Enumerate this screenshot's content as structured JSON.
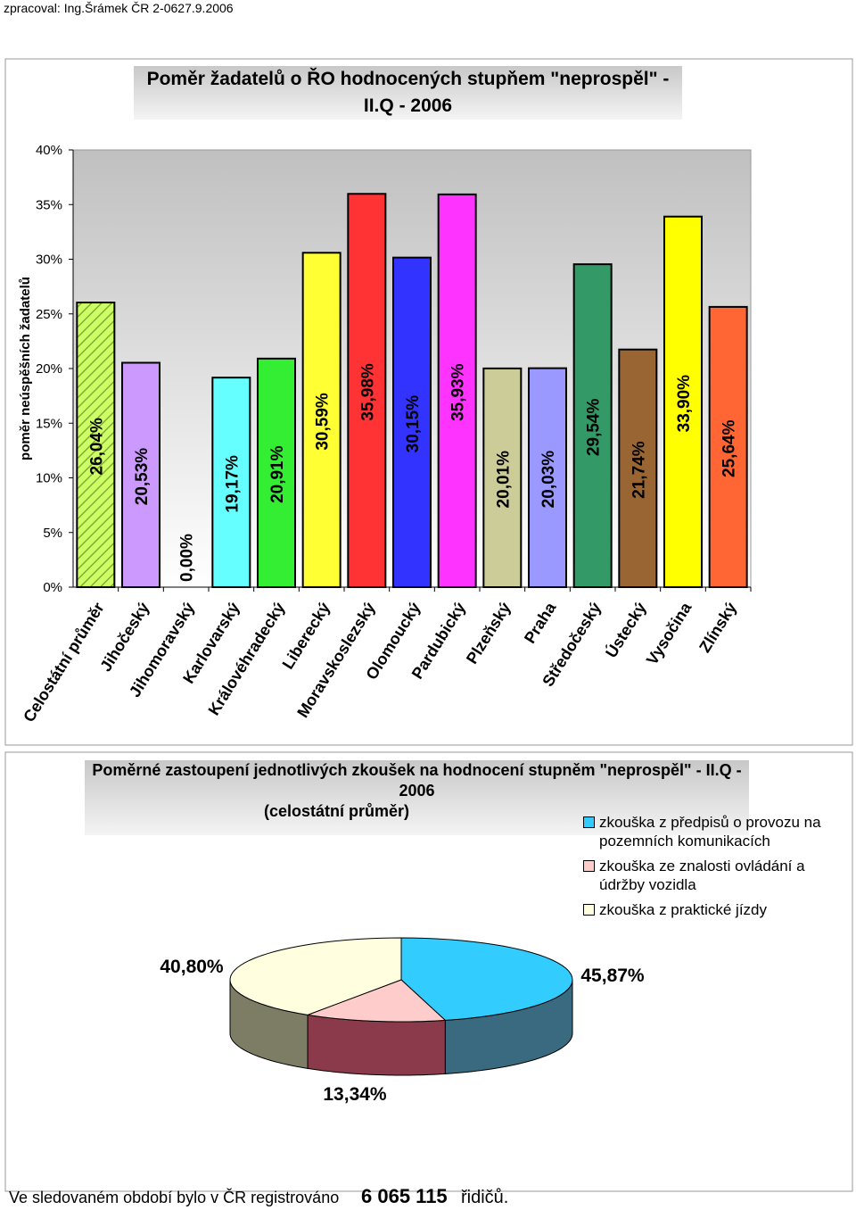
{
  "header": "zpracoval: Ing.Šrámek ČR 2-0627.9.2006",
  "chart_data": [
    {
      "type": "bar",
      "title": "Poměr žadatelů o ŘO hodnocených stupňem \"neprospěl\" - II.Q - 2006",
      "y_label": "poměr neúspěšních žadatelů",
      "categories": [
        "Celostátní průměr",
        "Jihočeský",
        "Jihomoravský",
        "Karlovarský",
        "Královéhradecký",
        "Liberecký",
        "Moravskoslezský",
        "Olomoucký",
        "Pardubický",
        "Plzeňský",
        "Praha",
        "Středočeský",
        "Ústecký",
        "Vysočina",
        "Zlínský"
      ],
      "values": [
        26.04,
        20.53,
        0.0,
        19.17,
        20.91,
        30.59,
        35.98,
        30.15,
        35.93,
        20.01,
        20.03,
        29.54,
        21.74,
        33.9,
        25.64
      ],
      "value_labels": [
        "26,04%",
        "20,53%",
        "0,00%",
        "19,17%",
        "20,91%",
        "30,59%",
        "35,98%",
        "30,15%",
        "35,93%",
        "20,01%",
        "20,03%",
        "29,54%",
        "21,74%",
        "33,90%",
        "25,64%"
      ],
      "colors": [
        "#ccff66",
        "#cc99ff",
        "#ff9900",
        "#66ffff",
        "#33ee33",
        "#ffff33",
        "#ff3333",
        "#3333ff",
        "#ff33ff",
        "#cccc99",
        "#9999ff",
        "#339966",
        "#996633",
        "#ffff00",
        "#ff6633"
      ],
      "ylim": [
        0,
        40
      ],
      "yticks": [
        {
          "value": 0,
          "label": "0%"
        },
        {
          "value": 5,
          "label": "5%"
        },
        {
          "value": 10,
          "label": "10%"
        },
        {
          "value": 15,
          "label": "15%"
        },
        {
          "value": 20,
          "label": "20%"
        },
        {
          "value": 25,
          "label": "25%"
        },
        {
          "value": 30,
          "label": "30%"
        },
        {
          "value": 35,
          "label": "35%"
        },
        {
          "value": 40,
          "label": "40%"
        }
      ]
    },
    {
      "type": "pie",
      "title": "Poměrné zastoupení jednotlivých zkoušek na hodnocení stupněm \"neprospěl\" - II.Q - 2006",
      "subtitle": "(celostátní průměr)",
      "categories": [
        "zkouška z předpisů o provozu na pozemních komunikacích",
        "zkouška ze znalosti ovládání a údržby vozidla",
        "zkouška z praktické jízdy"
      ],
      "values": [
        45.87,
        13.34,
        40.8
      ],
      "value_labels": [
        "45,87%",
        "13,34%",
        "40,80%"
      ],
      "colors": [
        "#33ccff",
        "#ffcccc",
        "#ffffe0"
      ],
      "side_colors": [
        "#3a6a80",
        "#8a3a4a",
        "#7d7d66"
      ]
    }
  ],
  "footer": {
    "text": "Ve sledovaném období bylo v ČR registrováno",
    "count": "6 065 115",
    "unit": "řidičů."
  }
}
